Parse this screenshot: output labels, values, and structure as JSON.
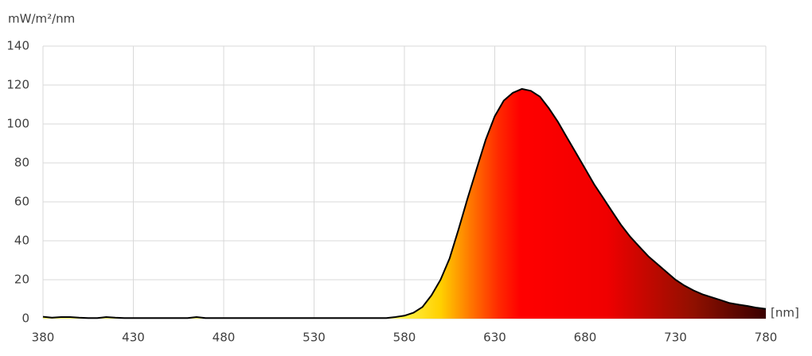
{
  "chart_data": {
    "type": "area",
    "y_axis_label": "mW/m²/nm",
    "x_axis_label": "[nm]",
    "x": [
      380,
      385,
      390,
      395,
      400,
      405,
      410,
      415,
      420,
      425,
      430,
      435,
      440,
      445,
      450,
      455,
      460,
      465,
      470,
      475,
      480,
      485,
      490,
      495,
      500,
      505,
      510,
      515,
      520,
      525,
      530,
      535,
      540,
      545,
      550,
      555,
      560,
      565,
      570,
      575,
      580,
      585,
      590,
      595,
      600,
      605,
      610,
      615,
      620,
      625,
      630,
      635,
      640,
      645,
      650,
      655,
      660,
      665,
      670,
      675,
      680,
      685,
      690,
      695,
      700,
      705,
      710,
      715,
      720,
      725,
      730,
      735,
      740,
      745,
      750,
      755,
      760,
      765,
      770,
      775,
      780
    ],
    "series": [
      {
        "color": "#000000",
        "values": [
          1,
          0.5,
          0.8,
          0.8,
          0.5,
          0.3,
          0.3,
          0.8,
          0.5,
          0.3,
          0.3,
          0.3,
          0.3,
          0.3,
          0.3,
          0.3,
          0.3,
          0.8,
          0.3,
          0.3,
          0.3,
          0.3,
          0.3,
          0.3,
          0.3,
          0.3,
          0.3,
          0.3,
          0.3,
          0.3,
          0.3,
          0.3,
          0.3,
          0.3,
          0.3,
          0.3,
          0.3,
          0.3,
          0.3,
          0.8,
          1.5,
          3,
          6,
          12,
          20,
          31,
          46,
          62,
          77,
          92,
          104,
          112,
          116,
          118,
          117,
          114,
          108,
          101,
          93,
          85,
          77,
          69,
          62,
          55,
          48,
          42,
          37,
          32,
          28,
          24,
          20,
          17,
          14.5,
          12.5,
          11,
          9.5,
          8,
          7.2,
          6.5,
          5.6,
          5
        ]
      }
    ],
    "xlim": [
      380,
      780
    ],
    "xticks": [
      380,
      430,
      480,
      530,
      580,
      630,
      680,
      730,
      780
    ],
    "ylim": [
      0,
      140
    ],
    "yticks": [
      0,
      20,
      40,
      60,
      80,
      100,
      120,
      140
    ],
    "grid": true
  }
}
